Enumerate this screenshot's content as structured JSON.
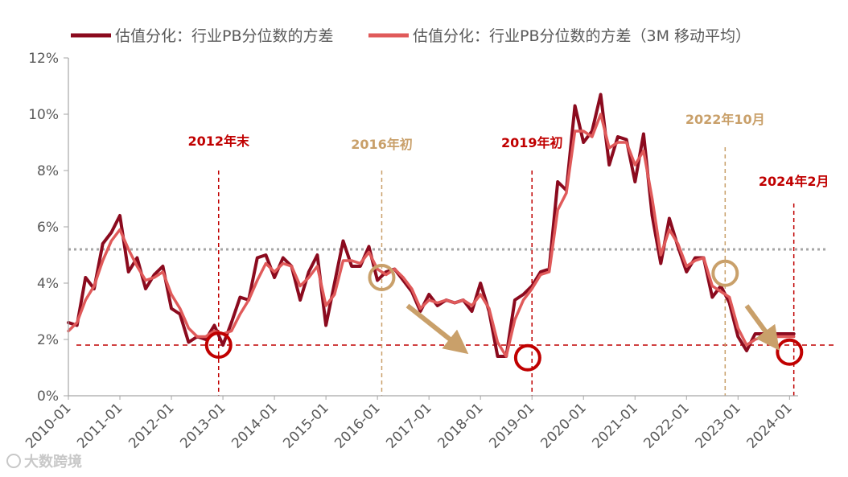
{
  "colors": {
    "series_raw": "#8B0A1E",
    "series_ma": "#E05A5A",
    "anno_red": "#C00000",
    "anno_tan": "#C9A06A",
    "avg_line": "#A6A6A6",
    "axis": "#A6A6A6",
    "text": "#595959"
  },
  "watermark": "大数跨境",
  "chart_data": {
    "type": "line",
    "y_axis": {
      "min": 0,
      "max": 12,
      "step": 2,
      "unit": "%",
      "tick_labels": [
        "0%",
        "2%",
        "4%",
        "6%",
        "8%",
        "10%",
        "12%"
      ]
    },
    "x_axis": {
      "start": "2010-01",
      "end": "2024-03",
      "tick_labels": [
        "2010-01",
        "2011-01",
        "2012-01",
        "2013-01",
        "2014-01",
        "2015-01",
        "2016-01",
        "2017-01",
        "2018-01",
        "2019-01",
        "2020-01",
        "2021-01",
        "2022-01",
        "2023-01",
        "2024-01"
      ]
    },
    "reference_lines": {
      "historical_average": 5.2,
      "low_level": 1.8
    },
    "series": [
      {
        "name": "估值分化：行业PB分位数的方差",
        "x": [
          "2010-01",
          "2010-03",
          "2010-05",
          "2010-07",
          "2010-09",
          "2010-11",
          "2011-01",
          "2011-03",
          "2011-05",
          "2011-07",
          "2011-09",
          "2011-11",
          "2012-01",
          "2012-03",
          "2012-05",
          "2012-07",
          "2012-09",
          "2012-11",
          "2013-01",
          "2013-03",
          "2013-05",
          "2013-07",
          "2013-09",
          "2013-11",
          "2014-01",
          "2014-03",
          "2014-05",
          "2014-07",
          "2014-09",
          "2014-11",
          "2015-01",
          "2015-03",
          "2015-05",
          "2015-07",
          "2015-09",
          "2015-11",
          "2016-01",
          "2016-03",
          "2016-05",
          "2016-07",
          "2016-09",
          "2016-11",
          "2017-01",
          "2017-03",
          "2017-05",
          "2017-07",
          "2017-09",
          "2017-11",
          "2018-01",
          "2018-03",
          "2018-05",
          "2018-07",
          "2018-09",
          "2018-11",
          "2019-01",
          "2019-03",
          "2019-05",
          "2019-07",
          "2019-09",
          "2019-11",
          "2020-01",
          "2020-03",
          "2020-05",
          "2020-07",
          "2020-09",
          "2020-11",
          "2021-01",
          "2021-03",
          "2021-05",
          "2021-07",
          "2021-09",
          "2021-11",
          "2022-01",
          "2022-03",
          "2022-05",
          "2022-07",
          "2022-09",
          "2022-11",
          "2023-01",
          "2023-03",
          "2023-05",
          "2023-07",
          "2023-09",
          "2023-11",
          "2024-01",
          "2024-02"
        ],
        "values": [
          2.6,
          2.5,
          4.2,
          3.8,
          5.4,
          5.8,
          6.4,
          4.4,
          4.9,
          3.8,
          4.3,
          4.6,
          3.1,
          2.9,
          1.9,
          2.1,
          2.0,
          2.5,
          1.8,
          2.6,
          3.5,
          3.4,
          4.9,
          5.0,
          4.2,
          4.9,
          4.6,
          3.4,
          4.4,
          5.0,
          2.5,
          4.0,
          5.5,
          4.6,
          4.6,
          5.3,
          4.1,
          4.4,
          4.5,
          4.1,
          3.7,
          3.0,
          3.6,
          3.2,
          3.4,
          3.3,
          3.4,
          3.0,
          4.0,
          3.0,
          1.4,
          1.4,
          3.4,
          3.6,
          3.9,
          4.4,
          4.5,
          7.6,
          7.3,
          10.3,
          9.0,
          9.4,
          10.7,
          8.2,
          9.2,
          9.1,
          7.6,
          9.3,
          6.4,
          4.7,
          6.3,
          5.3,
          4.4,
          4.9,
          4.9,
          3.5,
          3.9,
          3.3,
          2.1,
          1.6,
          2.2,
          2.2,
          2.2,
          2.2,
          2.2,
          2.2
        ],
        "color": "#8B0A1E"
      },
      {
        "name": "估值分化：行业PB分位数的方差（3M 移动平均）",
        "x": [
          "2010-01",
          "2010-03",
          "2010-05",
          "2010-07",
          "2010-09",
          "2010-11",
          "2011-01",
          "2011-03",
          "2011-05",
          "2011-07",
          "2011-09",
          "2011-11",
          "2012-01",
          "2012-03",
          "2012-05",
          "2012-07",
          "2012-09",
          "2012-11",
          "2013-01",
          "2013-03",
          "2013-05",
          "2013-07",
          "2013-09",
          "2013-11",
          "2014-01",
          "2014-03",
          "2014-05",
          "2014-07",
          "2014-09",
          "2014-11",
          "2015-01",
          "2015-03",
          "2015-05",
          "2015-07",
          "2015-09",
          "2015-11",
          "2016-01",
          "2016-03",
          "2016-05",
          "2016-07",
          "2016-09",
          "2016-11",
          "2017-01",
          "2017-03",
          "2017-05",
          "2017-07",
          "2017-09",
          "2017-11",
          "2018-01",
          "2018-03",
          "2018-05",
          "2018-07",
          "2018-09",
          "2018-11",
          "2019-01",
          "2019-03",
          "2019-05",
          "2019-07",
          "2019-09",
          "2019-11",
          "2020-01",
          "2020-03",
          "2020-05",
          "2020-07",
          "2020-09",
          "2020-11",
          "2021-01",
          "2021-03",
          "2021-05",
          "2021-07",
          "2021-09",
          "2021-11",
          "2022-01",
          "2022-03",
          "2022-05",
          "2022-07",
          "2022-09",
          "2022-11",
          "2023-01",
          "2023-03",
          "2023-05",
          "2023-07",
          "2023-09",
          "2023-11",
          "2024-01",
          "2024-02"
        ],
        "values": [
          2.3,
          2.6,
          3.4,
          3.9,
          4.8,
          5.5,
          5.9,
          5.2,
          4.6,
          4.1,
          4.2,
          4.4,
          3.6,
          3.1,
          2.4,
          2.1,
          2.1,
          2.3,
          2.2,
          2.3,
          2.9,
          3.4,
          4.1,
          4.7,
          4.4,
          4.7,
          4.6,
          3.9,
          4.2,
          4.6,
          3.2,
          3.6,
          4.8,
          4.8,
          4.7,
          5.1,
          4.5,
          4.3,
          4.5,
          4.2,
          3.8,
          3.1,
          3.4,
          3.3,
          3.4,
          3.3,
          3.4,
          3.2,
          3.6,
          3.1,
          1.9,
          1.4,
          2.7,
          3.4,
          3.8,
          4.3,
          4.4,
          6.6,
          7.2,
          9.4,
          9.4,
          9.2,
          10.0,
          8.8,
          9.0,
          9.0,
          8.2,
          8.7,
          7.0,
          5.0,
          5.9,
          5.4,
          4.6,
          4.8,
          4.9,
          3.9,
          3.7,
          3.5,
          2.4,
          1.8,
          2.0,
          2.1,
          2.1,
          2.1,
          2.1,
          2.1
        ],
        "color": "#E05A5A"
      }
    ],
    "annotations": [
      {
        "label": "2012年末",
        "x": "2012-12",
        "color": "#C00000"
      },
      {
        "label": "2016年初",
        "x": "2016-02",
        "color": "#C9A06A"
      },
      {
        "label": "2019年初",
        "x": "2019-01",
        "color": "#C00000"
      },
      {
        "label": "2022年10月",
        "x": "2022-10",
        "color": "#C9A06A"
      },
      {
        "label": "2024年2月",
        "x": "2024-02",
        "color": "#C00000"
      }
    ],
    "markers": [
      {
        "x": "2012-12",
        "y": 1.8,
        "color": "#C00000"
      },
      {
        "x": "2016-02",
        "y": 4.2,
        "color": "#C9A06A"
      },
      {
        "x": "2018-12",
        "y": 1.35,
        "color": "#C00000"
      },
      {
        "x": "2022-10",
        "y": 4.35,
        "color": "#C9A06A"
      },
      {
        "x": "2024-01",
        "y": 1.55,
        "color": "#C00000"
      }
    ],
    "arrows": [
      {
        "from": [
          "2016-08",
          3.2
        ],
        "to": [
          "2017-08",
          1.75
        ],
        "color": "#C9A06A"
      },
      {
        "from": [
          "2023-03",
          3.2
        ],
        "to": [
          "2023-09",
          1.95
        ],
        "color": "#C9A06A"
      }
    ]
  }
}
